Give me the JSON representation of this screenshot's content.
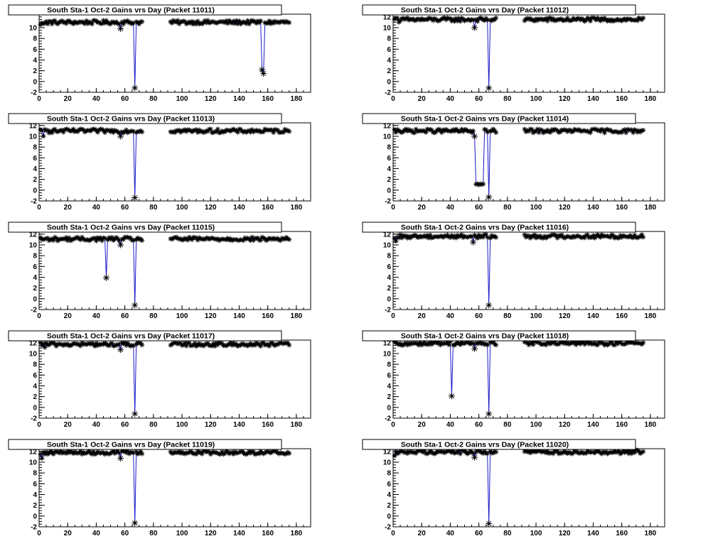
{
  "page": {
    "title_prefix": "South Sta-1 Oct-2 Gains vrs Day"
  },
  "axis_style": {
    "line_color": "#1a1acc",
    "marker_color": "#000000",
    "marker_glyph": "asterisk"
  },
  "chart_data": [
    {
      "type": "scatter",
      "title": "South Sta-1 Oct-2 Gains vrs Day (Packet 11011)",
      "xlabel": "",
      "ylabel": "",
      "xlim": [
        0,
        190
      ],
      "ylim": [
        -2,
        12.5
      ],
      "xticks": [
        0,
        20,
        40,
        60,
        80,
        100,
        120,
        140,
        160,
        180
      ],
      "yticks": [
        -2,
        0,
        2,
        4,
        6,
        8,
        10
      ],
      "baseline": 11.0,
      "gaps": [
        [
          72,
          92
        ]
      ],
      "dips": [
        {
          "x": 57,
          "y": 9.8
        },
        {
          "x": 67,
          "y": -1.2
        },
        {
          "x": 156,
          "y": 2.2
        },
        {
          "x": 157,
          "y": 1.5
        }
      ]
    },
    {
      "type": "scatter",
      "title": "South Sta-1 Oct-2 Gains vrs Day (Packet 11012)",
      "xlabel": "",
      "ylabel": "",
      "xlim": [
        0,
        190
      ],
      "ylim": [
        -2,
        12.5
      ],
      "xticks": [
        0,
        20,
        40,
        60,
        80,
        100,
        120,
        140,
        160,
        180
      ],
      "yticks": [
        -2,
        0,
        2,
        4,
        6,
        8,
        10,
        12
      ],
      "baseline": 11.5,
      "gaps": [
        [
          72,
          92
        ]
      ],
      "dips": [
        {
          "x": 57,
          "y": 10.0
        },
        {
          "x": 67,
          "y": -1.2
        }
      ]
    },
    {
      "type": "scatter",
      "title": "South Sta-1 Oct-2 Gains vrs Day (Packet 11013)",
      "xlabel": "",
      "ylabel": "",
      "xlim": [
        0,
        190
      ],
      "ylim": [
        -2,
        12.5
      ],
      "xticks": [
        0,
        20,
        40,
        60,
        80,
        100,
        120,
        140,
        160,
        180
      ],
      "yticks": [
        -2,
        0,
        2,
        4,
        6,
        8,
        10,
        12
      ],
      "baseline": 11.0,
      "gaps": [
        [
          72,
          92
        ]
      ],
      "dips": [
        {
          "x": 57,
          "y": 10.0
        },
        {
          "x": 67,
          "y": -1.4
        }
      ]
    },
    {
      "type": "scatter",
      "title": "South Sta-1 Oct-2 Gains vrs Day (Packet 11014)",
      "xlabel": "",
      "ylabel": "",
      "xlim": [
        0,
        190
      ],
      "ylim": [
        -2,
        12.5
      ],
      "xticks": [
        0,
        20,
        40,
        60,
        80,
        100,
        120,
        140,
        160,
        180
      ],
      "yticks": [
        -2,
        0,
        2,
        4,
        6,
        8,
        10,
        12
      ],
      "baseline": 11.0,
      "gaps": [
        [
          72,
          92
        ]
      ],
      "dips": [
        {
          "x": 57,
          "y": 10.0
        },
        {
          "x": 67,
          "y": -1.3
        }
      ],
      "plateau": {
        "from": 58,
        "to": 63,
        "y": 1.1
      }
    },
    {
      "type": "scatter",
      "title": "South Sta-1 Oct-2 Gains vrs Day (Packet 11015)",
      "xlabel": "",
      "ylabel": "",
      "xlim": [
        0,
        190
      ],
      "ylim": [
        -2,
        12.5
      ],
      "xticks": [
        0,
        20,
        40,
        60,
        80,
        100,
        120,
        140,
        160,
        180
      ],
      "yticks": [
        -2,
        0,
        2,
        4,
        6,
        8,
        10,
        12
      ],
      "baseline": 11.1,
      "gaps": [
        [
          72,
          92
        ]
      ],
      "dips": [
        {
          "x": 47,
          "y": 3.9
        },
        {
          "x": 57,
          "y": 10.0
        },
        {
          "x": 67,
          "y": -1.2
        }
      ]
    },
    {
      "type": "scatter",
      "title": "South Sta-1 Oct-2 Gains vrs Day (Packet 11016)",
      "xlabel": "",
      "ylabel": "",
      "xlim": [
        0,
        190
      ],
      "ylim": [
        -2,
        12.5
      ],
      "xticks": [
        0,
        20,
        40,
        60,
        80,
        100,
        120,
        140,
        160,
        180
      ],
      "yticks": [
        -2,
        0,
        2,
        4,
        6,
        8,
        10,
        12
      ],
      "baseline": 11.6,
      "gaps": [
        [
          72,
          92
        ]
      ],
      "dips": [
        {
          "x": 56,
          "y": 10.5
        },
        {
          "x": 67,
          "y": -1.2
        }
      ]
    },
    {
      "type": "scatter",
      "title": "South Sta-1 Oct-2 Gains vrs Day (Packet 11017)",
      "xlabel": "",
      "ylabel": "",
      "xlim": [
        0,
        190
      ],
      "ylim": [
        -2,
        12.5
      ],
      "xticks": [
        0,
        20,
        40,
        60,
        80,
        100,
        120,
        140,
        160,
        180
      ],
      "yticks": [
        -2,
        0,
        2,
        4,
        6,
        8,
        10,
        12
      ],
      "baseline": 11.7,
      "gaps": [
        [
          72,
          92
        ]
      ],
      "dips": [
        {
          "x": 57,
          "y": 10.7
        },
        {
          "x": 67,
          "y": -1.2
        }
      ]
    },
    {
      "type": "scatter",
      "title": "South Sta-1 Oct-2 Gains vrs Day (Packet 11018)",
      "xlabel": "",
      "ylabel": "",
      "xlim": [
        0,
        190
      ],
      "ylim": [
        -2,
        12.5
      ],
      "xticks": [
        0,
        20,
        40,
        60,
        80,
        100,
        120,
        140,
        160,
        180
      ],
      "yticks": [
        -2,
        0,
        2,
        4,
        6,
        8,
        10,
        12
      ],
      "baseline": 11.9,
      "gaps": [
        [
          72,
          92
        ]
      ],
      "dips": [
        {
          "x": 41,
          "y": 2.1
        },
        {
          "x": 57,
          "y": 10.9
        },
        {
          "x": 67,
          "y": -1.2
        }
      ]
    },
    {
      "type": "scatter",
      "title": "South Sta-1 Oct-2 Gains vrs Day (Packet 11019)",
      "xlabel": "",
      "ylabel": "",
      "xlim": [
        0,
        190
      ],
      "ylim": [
        -2,
        12.5
      ],
      "xticks": [
        0,
        20,
        40,
        60,
        80,
        100,
        120,
        140,
        160,
        180
      ],
      "yticks": [
        -2,
        0,
        2,
        4,
        6,
        8,
        10,
        12
      ],
      "baseline": 11.8,
      "gaps": [
        [
          72,
          92
        ]
      ],
      "dips": [
        {
          "x": 57,
          "y": 10.7
        },
        {
          "x": 67,
          "y": -1.3
        }
      ]
    },
    {
      "type": "scatter",
      "title": "South Sta-1 Oct-2 Gains vrs Day (Packet 11020)",
      "xlabel": "",
      "ylabel": "",
      "xlim": [
        0,
        190
      ],
      "ylim": [
        -2,
        12.5
      ],
      "xticks": [
        0,
        20,
        40,
        60,
        80,
        100,
        120,
        140,
        160,
        180
      ],
      "yticks": [
        -2,
        0,
        2,
        4,
        6,
        8,
        10,
        12
      ],
      "baseline": 11.9,
      "gaps": [
        [
          72,
          92
        ]
      ],
      "dips": [
        {
          "x": 57,
          "y": 10.9
        },
        {
          "x": 67,
          "y": -1.4
        }
      ]
    }
  ]
}
